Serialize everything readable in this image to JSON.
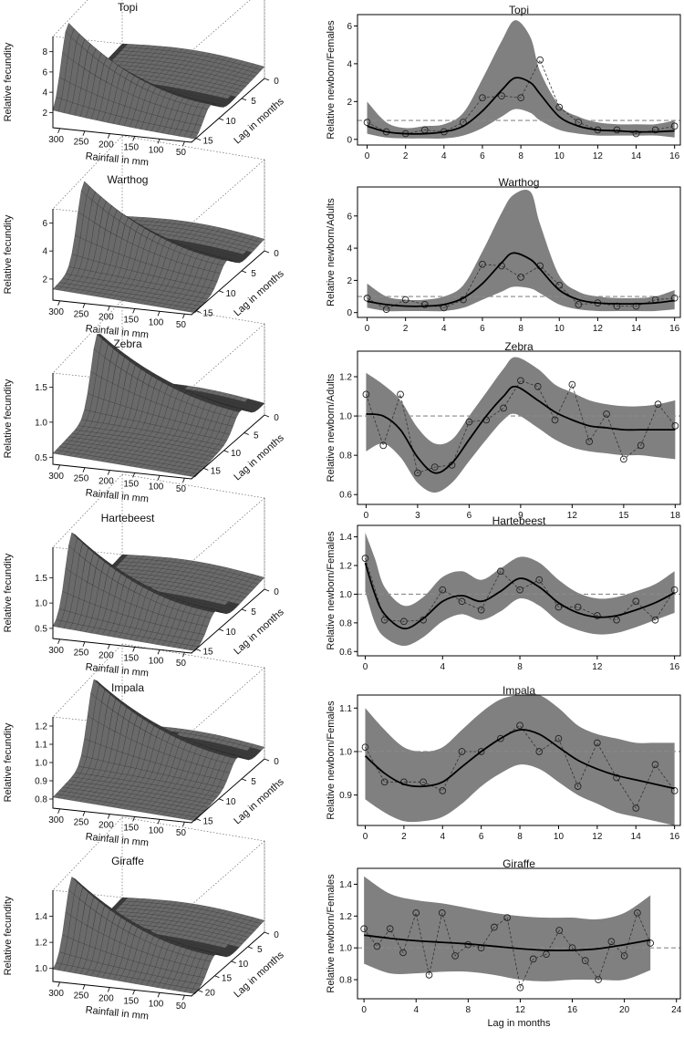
{
  "figure": {
    "surface_ylabel": "Relative fecundity",
    "surface_xlabel": "Rainfall in mm",
    "surface_lag_label": "Lag in months",
    "shared_xlabel": "Lag in months"
  },
  "colors": {
    "band": "#808080",
    "surface": "#3a3a3a",
    "surface_light": "#6a6a6a",
    "line": "#000000",
    "reference": "#8a8a8a",
    "marker": "#222222"
  },
  "chart_data": [
    {
      "type": "surface3d",
      "title": "Topi",
      "xlabel": "Rainfall in mm",
      "ylabel": "Lag in months",
      "zlabel": "Relative fecundity",
      "rain_ticks": [
        "300",
        "250",
        "200",
        "150",
        "100",
        "50"
      ],
      "lag_ticks": [
        "0",
        "5",
        "10",
        "15"
      ],
      "z_ticks": [
        "2",
        "4",
        "6",
        "8"
      ],
      "zlim": [
        0.5,
        9.5
      ],
      "lag_max": 16,
      "peak_height": 9.2,
      "ridge_fraction": 0.78
    },
    {
      "type": "line",
      "title": "Topi",
      "ylabel": "Relative newborn/Females",
      "x_ticks": [
        "0",
        "2",
        "4",
        "6",
        "8",
        "10",
        "12",
        "14",
        "16"
      ],
      "xlim": [
        -0.5,
        16.3
      ],
      "y_ticks": [
        "0",
        "2",
        "4",
        "6"
      ],
      "ylim": [
        -0.3,
        6.6
      ],
      "reference": 1,
      "observed": {
        "x": [
          0,
          1,
          2,
          3,
          4,
          5,
          6,
          7,
          8,
          9,
          10,
          11,
          12,
          13,
          14,
          15,
          16
        ],
        "y": [
          0.9,
          0.4,
          0.3,
          0.5,
          0.4,
          0.9,
          2.2,
          2.3,
          2.2,
          4.2,
          1.7,
          0.9,
          0.5,
          0.5,
          0.3,
          0.5,
          0.7
        ]
      },
      "smooth": {
        "x": [
          0,
          1,
          2,
          3,
          4,
          5,
          6,
          7,
          7.7,
          8.5,
          9,
          10,
          11,
          12,
          13,
          14,
          15,
          16
        ],
        "y": [
          0.7,
          0.4,
          0.3,
          0.3,
          0.4,
          0.7,
          1.5,
          2.6,
          3.25,
          3.0,
          2.4,
          1.2,
          0.7,
          0.5,
          0.45,
          0.4,
          0.4,
          0.45
        ]
      },
      "band_upper": [
        2.0,
        0.9,
        0.6,
        0.7,
        0.8,
        1.4,
        3.2,
        5.2,
        6.3,
        5.4,
        3.6,
        1.8,
        1.2,
        0.9,
        0.8,
        0.8,
        0.8,
        1.0
      ],
      "band_lower": [
        0.3,
        0.1,
        0.05,
        0.05,
        0.05,
        0.2,
        0.6,
        1.2,
        1.6,
        1.4,
        1.0,
        0.5,
        0.3,
        0.2,
        0.2,
        0.2,
        0.2,
        0.1
      ]
    },
    {
      "type": "surface3d",
      "title": "Warthog",
      "xlabel": "Rainfall in mm",
      "ylabel": "Lag in months",
      "zlabel": "Relative fecundity",
      "rain_ticks": [
        "300",
        "250",
        "200",
        "150",
        "100",
        "50"
      ],
      "lag_ticks": [
        "0",
        "5",
        "10",
        "15"
      ],
      "z_ticks": [
        "2",
        "4",
        "6"
      ],
      "zlim": [
        0.5,
        7
      ],
      "lag_max": 16,
      "peak_height": 6.6,
      "ridge_fraction": 0.55
    },
    {
      "type": "line",
      "title": "Warthog",
      "ylabel": "Relative newborn/Adults",
      "x_ticks": [
        "0",
        "2",
        "4",
        "6",
        "8",
        "10",
        "12",
        "14",
        "16"
      ],
      "xlim": [
        -0.5,
        16.3
      ],
      "y_ticks": [
        "0",
        "2",
        "4",
        "6"
      ],
      "ylim": [
        -0.3,
        7.8
      ],
      "reference": 1,
      "observed": {
        "x": [
          0,
          1,
          2,
          3,
          4,
          5,
          6,
          7,
          8,
          9,
          10,
          11,
          12,
          13,
          14,
          15,
          16
        ],
        "y": [
          0.9,
          0.2,
          0.8,
          0.5,
          0.3,
          0.8,
          3.0,
          2.9,
          2.2,
          2.9,
          1.7,
          0.5,
          0.6,
          0.4,
          0.4,
          0.8,
          0.9
        ]
      },
      "smooth": {
        "x": [
          0,
          1,
          2,
          3,
          4,
          5,
          6,
          7,
          7.6,
          8.5,
          9,
          10,
          11,
          12,
          13,
          14,
          15,
          16
        ],
        "y": [
          0.7,
          0.5,
          0.4,
          0.4,
          0.5,
          0.9,
          1.8,
          3.1,
          3.7,
          3.3,
          2.7,
          1.4,
          0.8,
          0.6,
          0.55,
          0.55,
          0.6,
          0.75
        ]
      },
      "band_upper": [
        1.8,
        1.0,
        0.8,
        0.8,
        1.0,
        1.7,
        3.8,
        6.2,
        7.3,
        7.5,
        5.5,
        2.3,
        1.3,
        1.0,
        0.9,
        0.9,
        1.0,
        1.4
      ],
      "band_lower": [
        0.3,
        0.1,
        0.1,
        0.1,
        0.1,
        0.3,
        0.8,
        1.3,
        1.6,
        1.5,
        1.2,
        0.5,
        0.2,
        0.1,
        0.1,
        0.1,
        0.1,
        0.2
      ]
    },
    {
      "type": "surface3d",
      "title": "Zebra",
      "xlabel": "Rainfall in mm",
      "ylabel": "Lag in months",
      "zlabel": "Relative fecundity",
      "rain_ticks": [
        "300",
        "250",
        "200",
        "150",
        "100",
        "50"
      ],
      "lag_ticks": [
        "0",
        "5",
        "10",
        "15"
      ],
      "z_ticks": [
        "0.5",
        "1.0",
        "1.5"
      ],
      "zlim": [
        0.4,
        1.7
      ],
      "lag_max": 18,
      "peak_height": 1.6,
      "ridge_fraction": 0.35
    },
    {
      "type": "line",
      "title": "Zebra",
      "ylabel": "Relative newborn/Adults",
      "x_ticks": [
        "0",
        "3",
        "6",
        "9",
        "12",
        "15",
        "18"
      ],
      "xlim": [
        -0.5,
        18.3
      ],
      "y_ticks": [
        "0.6",
        "0.8",
        "1.0",
        "1.2"
      ],
      "ylim": [
        0.55,
        1.33
      ],
      "reference": 1,
      "observed": {
        "x": [
          0,
          1,
          2,
          3,
          4,
          5,
          6,
          7,
          8,
          9,
          10,
          11,
          12,
          13,
          14,
          15,
          16,
          17,
          18
        ],
        "y": [
          1.11,
          0.85,
          1.11,
          0.71,
          0.74,
          0.75,
          0.97,
          0.98,
          1.04,
          1.18,
          1.15,
          0.98,
          1.16,
          0.87,
          1.01,
          0.78,
          0.85,
          1.06,
          0.95
        ]
      },
      "smooth": {
        "x": [
          0,
          1,
          2,
          3,
          4,
          5,
          6,
          7,
          8,
          8.7,
          10,
          11,
          12,
          13,
          14,
          15,
          16,
          17,
          18
        ],
        "y": [
          1.01,
          1.0,
          0.93,
          0.79,
          0.71,
          0.76,
          0.88,
          1.0,
          1.1,
          1.15,
          1.08,
          1.02,
          0.98,
          0.95,
          0.94,
          0.93,
          0.93,
          0.93,
          0.93
        ]
      },
      "band_upper": [
        1.22,
        1.16,
        1.08,
        0.94,
        0.86,
        0.88,
        1.0,
        1.12,
        1.24,
        1.3,
        1.24,
        1.16,
        1.12,
        1.08,
        1.06,
        1.05,
        1.05,
        1.06,
        1.08
      ],
      "band_lower": [
        0.82,
        0.86,
        0.79,
        0.66,
        0.61,
        0.66,
        0.77,
        0.88,
        0.98,
        1.01,
        0.94,
        0.88,
        0.84,
        0.82,
        0.81,
        0.8,
        0.8,
        0.79,
        0.78
      ]
    },
    {
      "type": "surface3d",
      "title": "Hartebeest",
      "xlabel": "Rainfall in mm",
      "ylabel": "Lag in months",
      "zlabel": "Relative fecundity",
      "rain_ticks": [
        "300",
        "250",
        "200",
        "150",
        "100",
        "50"
      ],
      "lag_ticks": [
        "0",
        "5",
        "10",
        "15"
      ],
      "z_ticks": [
        "0.5",
        "1.0",
        "1.5"
      ],
      "zlim": [
        0.3,
        2.1
      ],
      "lag_max": 16,
      "peak_height": 2.0,
      "ridge_fraction": 0.72
    },
    {
      "type": "line",
      "title": "Hartebeest",
      "ylabel": "Relative newborn/Females",
      "x_ticks": [
        "0",
        "4",
        "8",
        "12",
        "16"
      ],
      "xlim": [
        -0.4,
        16.3
      ],
      "y_ticks": [
        "0.6",
        "0.8",
        "1.0",
        "1.2",
        "1.4"
      ],
      "ylim": [
        0.57,
        1.48
      ],
      "reference": 1,
      "observed": {
        "x": [
          0,
          1,
          2,
          3,
          4,
          5,
          6,
          7,
          8,
          9,
          10,
          11,
          12,
          13,
          14,
          15,
          16
        ],
        "y": [
          1.25,
          0.82,
          0.81,
          0.82,
          1.03,
          0.95,
          0.89,
          1.16,
          1.03,
          1.1,
          0.91,
          0.91,
          0.85,
          0.82,
          0.95,
          0.82,
          1.03
        ]
      },
      "smooth": {
        "x": [
          0,
          0.5,
          1,
          2,
          3,
          4,
          5,
          6,
          7,
          8,
          9,
          10,
          11,
          12,
          13,
          14,
          15,
          16
        ],
        "y": [
          1.22,
          1.0,
          0.86,
          0.76,
          0.83,
          0.95,
          0.99,
          0.95,
          1.02,
          1.11,
          1.05,
          0.94,
          0.87,
          0.84,
          0.85,
          0.89,
          0.94,
          1.01
        ]
      },
      "band_upper": [
        1.43,
        1.25,
        1.05,
        0.92,
        0.98,
        1.12,
        1.16,
        1.1,
        1.18,
        1.26,
        1.22,
        1.1,
        1.01,
        0.97,
        0.98,
        1.02,
        1.07,
        1.16
      ],
      "band_lower": [
        1.02,
        0.8,
        0.7,
        0.64,
        0.7,
        0.81,
        0.86,
        0.82,
        0.88,
        0.97,
        0.92,
        0.81,
        0.75,
        0.72,
        0.73,
        0.77,
        0.82,
        0.87
      ]
    },
    {
      "type": "surface3d",
      "title": "Impala",
      "xlabel": "Rainfall in mm",
      "ylabel": "Lag in months",
      "zlabel": "Relative fecundity",
      "rain_ticks": [
        "300",
        "250",
        "200",
        "150",
        "100",
        "50"
      ],
      "lag_ticks": [
        "0",
        "5",
        "10",
        "15"
      ],
      "z_ticks": [
        "0.8",
        "0.9",
        "1.0",
        "1.1",
        "1.2"
      ],
      "zlim": [
        0.75,
        1.25
      ],
      "lag_max": 16,
      "peak_height": 1.22,
      "ridge_fraction": 0.4
    },
    {
      "type": "line",
      "title": "Impala",
      "ylabel": "Relative newborn/Females",
      "x_ticks": [
        "0",
        "2",
        "4",
        "6",
        "8",
        "10",
        "12",
        "14",
        "16"
      ],
      "xlim": [
        -0.4,
        16.3
      ],
      "y_ticks": [
        "0.9",
        "1.0",
        "1.1"
      ],
      "ylim": [
        0.83,
        1.13
      ],
      "reference": 1,
      "observed": {
        "x": [
          0,
          1,
          2,
          3,
          4,
          5,
          6,
          7,
          8,
          9,
          10,
          11,
          12,
          13,
          14,
          15,
          16
        ],
        "y": [
          1.01,
          0.93,
          0.93,
          0.93,
          0.91,
          1.0,
          1.0,
          1.03,
          1.06,
          1.0,
          1.03,
          0.92,
          1.02,
          0.94,
          0.87,
          0.97,
          0.91
        ]
      },
      "smooth": {
        "x": [
          0,
          1,
          2,
          3,
          4,
          5,
          6,
          7,
          8,
          9,
          10,
          11,
          12,
          13,
          14,
          15,
          16
        ],
        "y": [
          0.99,
          0.95,
          0.925,
          0.92,
          0.93,
          0.965,
          1.0,
          1.03,
          1.05,
          1.04,
          1.01,
          0.98,
          0.96,
          0.945,
          0.935,
          0.925,
          0.915
        ]
      },
      "band_upper": [
        1.1,
        1.05,
        1.01,
        1.0,
        1.01,
        1.05,
        1.09,
        1.12,
        1.13,
        1.13,
        1.1,
        1.06,
        1.04,
        1.03,
        1.02,
        1.02,
        1.02
      ],
      "band_lower": [
        0.89,
        0.86,
        0.84,
        0.84,
        0.85,
        0.88,
        0.92,
        0.95,
        0.97,
        0.96,
        0.93,
        0.9,
        0.88,
        0.86,
        0.85,
        0.84,
        0.83
      ]
    },
    {
      "type": "surface3d",
      "title": "Giraffe",
      "xlabel": "Rainfall in mm",
      "ylabel": "Lag in months",
      "zlabel": "Relative fecundity",
      "rain_ticks": [
        "300",
        "250",
        "200",
        "150",
        "100",
        "50"
      ],
      "lag_ticks": [
        "0",
        "5",
        "10",
        "15",
        "20"
      ],
      "z_ticks": [
        "1.0",
        "1.2",
        "1.4"
      ],
      "zlim": [
        0.9,
        1.6
      ],
      "lag_max": 22,
      "peak_height": 1.55,
      "ridge_fraction": 0.72
    },
    {
      "type": "line",
      "title": "Giraffe",
      "ylabel": "Relative newborn/Females",
      "xlabel": "Lag in months",
      "x_ticks": [
        "0",
        "4",
        "8",
        "12",
        "16",
        "20",
        "24"
      ],
      "xlim": [
        -0.5,
        24.3
      ],
      "y_ticks": [
        "0.8",
        "1.0",
        "1.2",
        "1.4"
      ],
      "ylim": [
        0.68,
        1.5
      ],
      "reference": 1,
      "observed": {
        "x": [
          0,
          1,
          2,
          3,
          4,
          5,
          6,
          7,
          8,
          9,
          10,
          11,
          12,
          13,
          14,
          15,
          16,
          17,
          18,
          19,
          20,
          21,
          22
        ],
        "y": [
          1.12,
          1.01,
          1.12,
          0.97,
          1.22,
          0.83,
          1.22,
          0.95,
          1.02,
          1.0,
          1.13,
          1.19,
          0.75,
          0.93,
          0.96,
          1.11,
          1.0,
          0.92,
          0.8,
          1.04,
          0.95,
          1.22,
          1.03
        ]
      },
      "smooth": {
        "x": [
          0,
          2,
          4,
          6,
          8,
          10,
          12,
          14,
          16,
          18,
          20,
          22
        ],
        "y": [
          1.08,
          1.06,
          1.045,
          1.035,
          1.025,
          1.01,
          0.995,
          0.985,
          0.985,
          0.995,
          1.02,
          1.05
        ]
      },
      "band_upper": [
        1.45,
        1.34,
        1.3,
        1.28,
        1.25,
        1.22,
        1.2,
        1.19,
        1.19,
        1.18,
        1.22,
        1.33
      ],
      "band_lower": [
        0.9,
        0.84,
        0.84,
        0.85,
        0.85,
        0.83,
        0.8,
        0.79,
        0.8,
        0.8,
        0.8,
        0.86
      ]
    }
  ]
}
